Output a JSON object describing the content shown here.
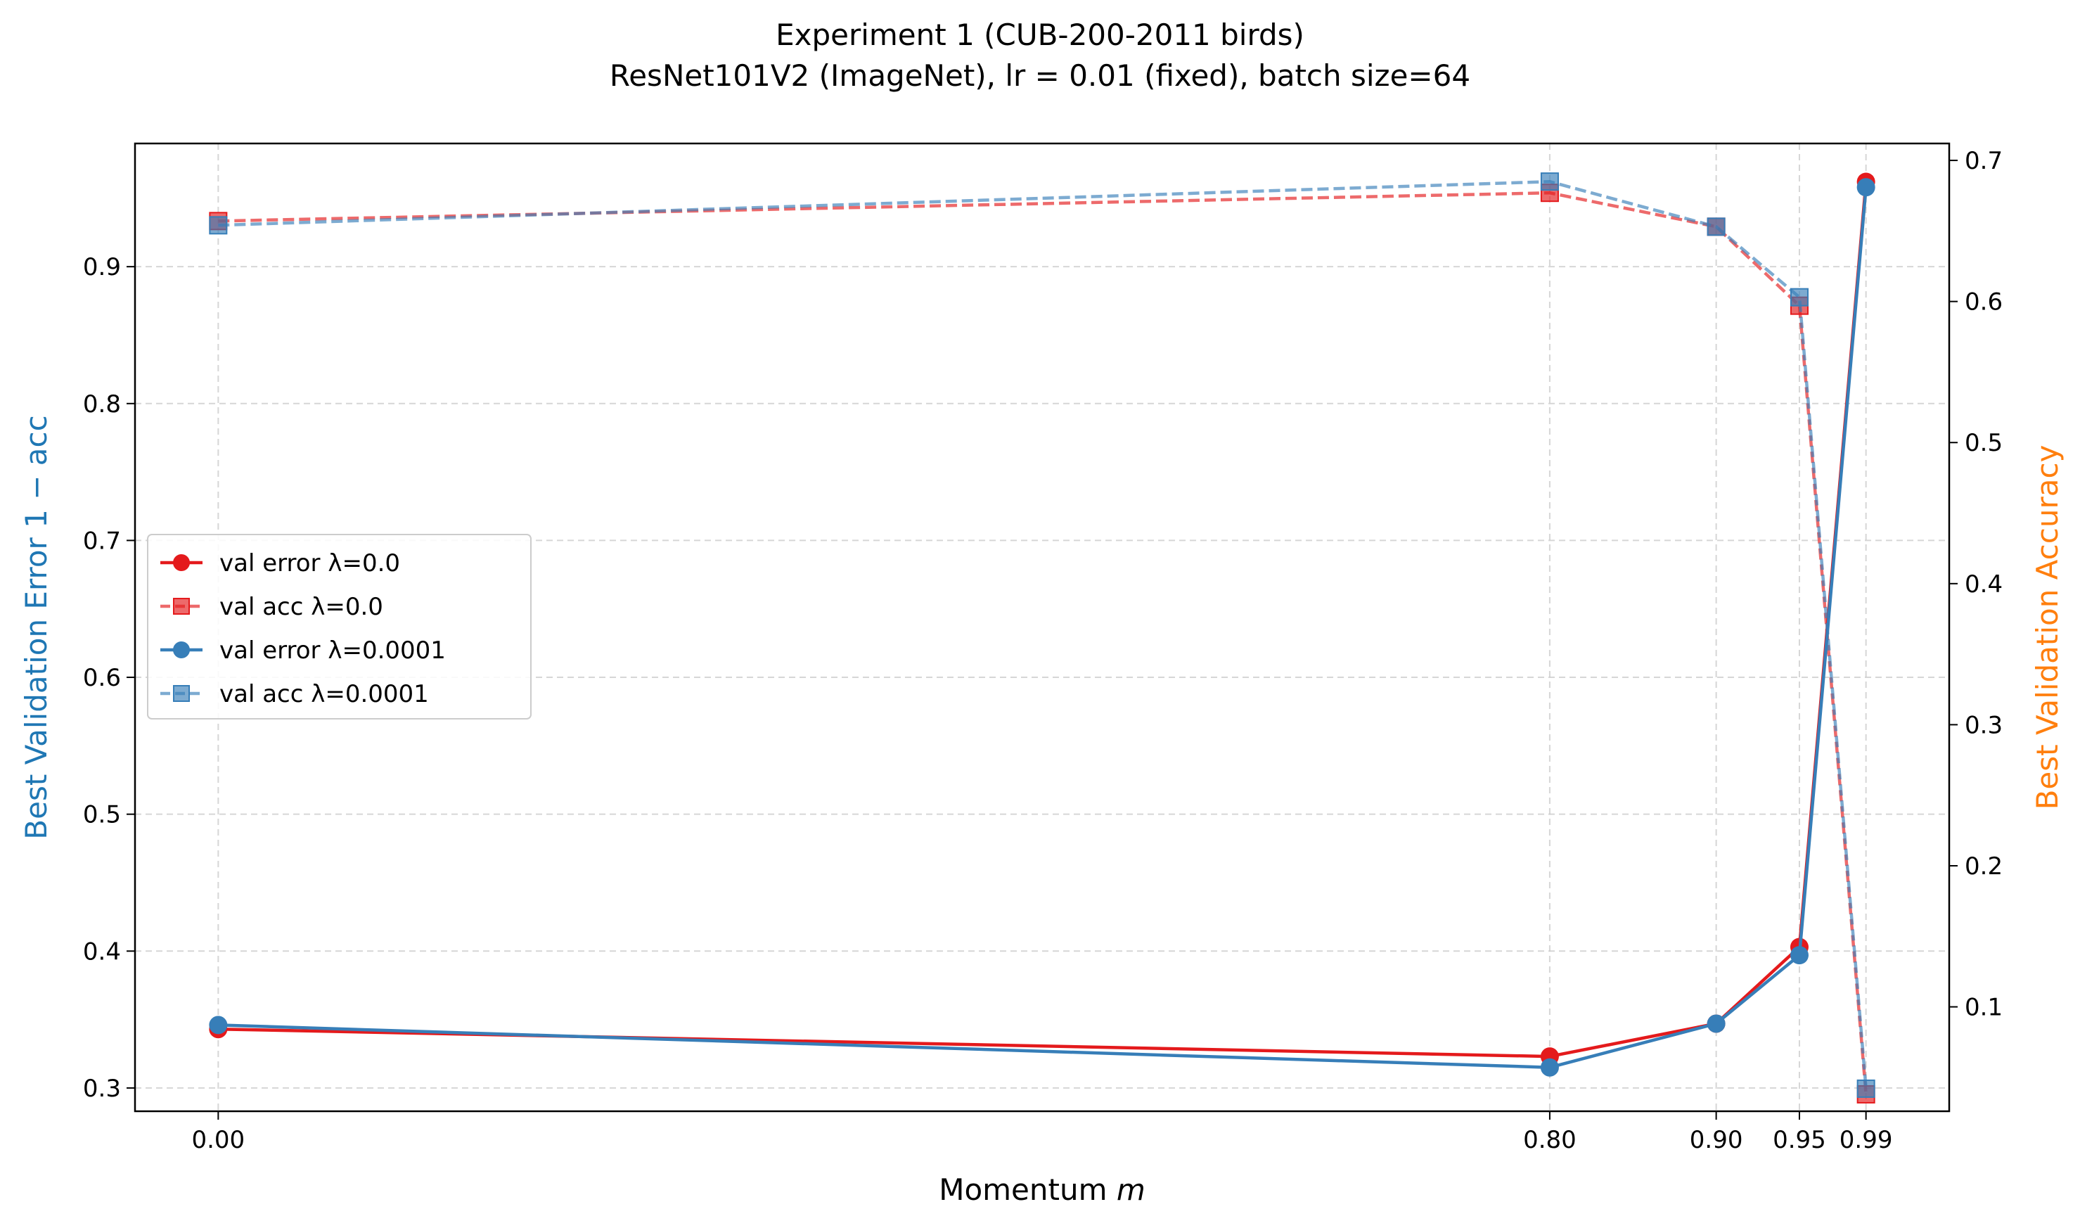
{
  "chart_data": {
    "type": "line",
    "title": "Experiment 1 (CUB-200-2011 birds)",
    "subtitle": "ResNet101V2 (ImageNet), lr = 0.01 (fixed), batch size=64",
    "xlabel_prefix": "Momentum ",
    "xlabel_var": "m",
    "ylabel_left": "Best Validation Error 1 − acc",
    "ylabel_right": "Best Validation Accuracy",
    "x": [
      0.0,
      0.8,
      0.9,
      0.95,
      0.99
    ],
    "x_tick_labels": [
      "0.00",
      "0.80",
      "0.90",
      "0.95",
      "0.99"
    ],
    "xlim": [
      -0.05,
      1.04
    ],
    "ylim_left": [
      0.283,
      0.99
    ],
    "ylim_right": [
      0.026,
      0.712
    ],
    "yticks_left": [
      0.3,
      0.4,
      0.5,
      0.6,
      0.7,
      0.8,
      0.9
    ],
    "yticks_right": [
      0.1,
      0.2,
      0.3,
      0.4,
      0.5,
      0.6,
      0.7
    ],
    "grid": true,
    "legend_position": "center-left",
    "series": [
      {
        "name": "val error λ=0.0",
        "axis": "left",
        "color": "#e41a1c",
        "style": "solid",
        "marker": "circle",
        "values": [
          0.343,
          0.323,
          0.347,
          0.403,
          0.962
        ]
      },
      {
        "name": "val acc λ=0.0",
        "axis": "right",
        "color": "#e41a1c",
        "style": "dashed",
        "marker": "square",
        "values": [
          0.657,
          0.677,
          0.653,
          0.597,
          0.038
        ]
      },
      {
        "name": "val error λ=0.0001",
        "axis": "left",
        "color": "#377eb8",
        "style": "solid",
        "marker": "circle",
        "values": [
          0.346,
          0.315,
          0.347,
          0.397,
          0.958
        ]
      },
      {
        "name": "val acc λ=0.0001",
        "axis": "right",
        "color": "#377eb8",
        "style": "dashed",
        "marker": "square",
        "values": [
          0.654,
          0.685,
          0.653,
          0.603,
          0.042
        ]
      }
    ],
    "colors": {
      "left_axis_label": "#1f77b4",
      "right_axis_label": "#ff7f0e"
    }
  }
}
